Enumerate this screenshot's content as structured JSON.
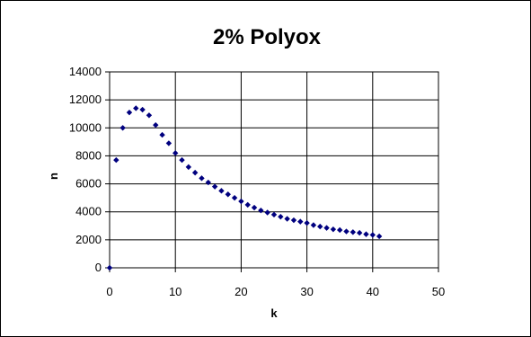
{
  "chart_data": {
    "type": "scatter",
    "title": "2% Polyox",
    "xlabel": "k",
    "ylabel": "n",
    "xlim": [
      0,
      50
    ],
    "ylim": [
      0,
      14000
    ],
    "x_ticks": [
      "0",
      "10",
      "20",
      "30",
      "40",
      "50"
    ],
    "y_ticks": [
      "0",
      "2000",
      "4000",
      "6000",
      "8000",
      "10000",
      "12000",
      "14000"
    ],
    "grid": true,
    "legend": "none",
    "marker_color": "#00007f",
    "series": [
      {
        "x": [
          0,
          1,
          2,
          3,
          4,
          5,
          6,
          7,
          8,
          9,
          10,
          11,
          12,
          13,
          14,
          15,
          16,
          17,
          18,
          19,
          20,
          21,
          22,
          23,
          24,
          25,
          26,
          27,
          28,
          29,
          30,
          31,
          32,
          33,
          34,
          35,
          36,
          37,
          38,
          39,
          40,
          41
        ],
        "y": [
          0,
          7700,
          10000,
          11100,
          11400,
          11300,
          10900,
          10200,
          9500,
          8900,
          8200,
          7700,
          7200,
          6800,
          6400,
          6100,
          5800,
          5500,
          5250,
          5000,
          4750,
          4500,
          4300,
          4100,
          3950,
          3800,
          3650,
          3500,
          3400,
          3300,
          3200,
          3050,
          2950,
          2850,
          2750,
          2700,
          2600,
          2550,
          2500,
          2400,
          2350,
          2250
        ]
      }
    ]
  }
}
